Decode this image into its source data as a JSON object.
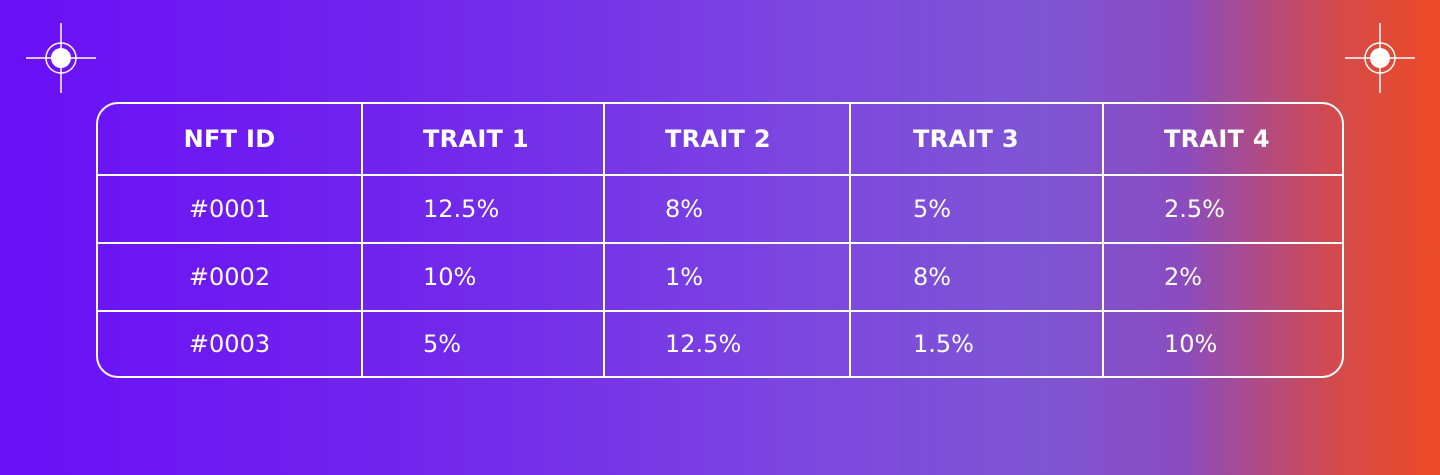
{
  "table": {
    "headers": [
      "NFT ID",
      "TRAIT 1",
      "TRAIT 2",
      "TRAIT 3",
      "TRAIT 4"
    ],
    "rows": [
      [
        "#0001",
        "12.5%",
        "8%",
        "5%",
        "2.5%"
      ],
      [
        "#0002",
        "10%",
        "1%",
        "8%",
        "2%"
      ],
      [
        "#0003",
        "5%",
        "12.5%",
        "1.5%",
        "10%"
      ]
    ]
  },
  "colors": {
    "gradient_left": "#6a0ff6",
    "gradient_mid": "#7e56d4",
    "gradient_right": "#ec4a24",
    "line": "#ffffff"
  },
  "decorations": [
    "crosshair-icon",
    "crosshair-icon"
  ]
}
